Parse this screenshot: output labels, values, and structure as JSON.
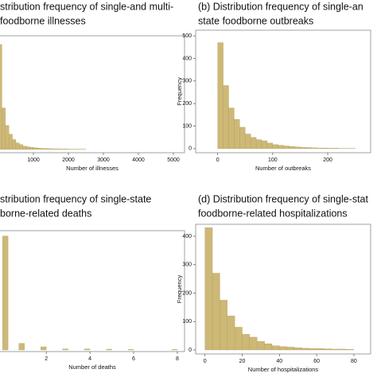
{
  "chart_data": [
    {
      "type": "histogram",
      "title": [
        "stribution frequency of single-and multi-",
        "foodborne illnesses"
      ],
      "x_label": "Number of illnesses",
      "color": "#cdb876",
      "bins": [
        0,
        100,
        200,
        300,
        400,
        500,
        600,
        700,
        800,
        900,
        1000,
        1100,
        1200,
        1300,
        1400,
        1500,
        1600,
        1700,
        1800,
        1900,
        2000,
        2100,
        2200,
        2300,
        2400,
        2500
      ],
      "counts": [
        480,
        190,
        110,
        70,
        45,
        30,
        22,
        15,
        12,
        10,
        8,
        6,
        5,
        4,
        4,
        3,
        3,
        2,
        2,
        2,
        1,
        1,
        1,
        1,
        1
      ],
      "xlim": [
        -68,
        5318
      ],
      "ylim": [
        -15,
        520
      ],
      "xticks": [
        1000,
        2000,
        3000,
        4000,
        5000
      ]
    },
    {
      "type": "histogram",
      "title": [
        "(b) Distribution frequency of single-an",
        "state foodborne outbreaks"
      ],
      "x_label": "Number of outbreaks",
      "y_label": "Frequency",
      "color": "#cdb876",
      "bins": [
        0,
        10,
        20,
        30,
        40,
        50,
        60,
        70,
        80,
        90,
        100,
        110,
        120,
        130,
        140,
        150,
        160,
        170,
        180,
        190,
        200,
        210,
        220,
        230,
        240,
        250
      ],
      "counts": [
        470,
        280,
        180,
        130,
        95,
        65,
        50,
        40,
        35,
        25,
        18,
        15,
        12,
        10,
        8,
        6,
        5,
        4,
        3,
        3,
        2,
        2,
        1,
        1,
        1
      ],
      "xlim": [
        -40,
        278
      ],
      "ylim": [
        -18,
        525
      ],
      "xticks": [
        0,
        100,
        200
      ],
      "yticks": [
        0,
        100,
        200,
        300,
        400,
        500
      ]
    },
    {
      "type": "histogram",
      "title": [
        "stribution frequency of single-state",
        "borne-related deaths"
      ],
      "x_label": "Number of deaths",
      "color": "#cdb876",
      "bins": [
        0,
        0.25,
        0.5,
        0.75,
        1,
        1.25,
        1.5,
        1.75,
        2,
        2.25,
        2.5,
        2.75,
        3,
        3.25,
        3.5,
        3.75,
        4,
        4.25,
        4.5,
        4.75,
        5,
        5.25,
        5.5,
        5.75,
        6,
        6.25,
        6.5,
        6.75,
        7,
        7.25,
        7.5,
        7.75,
        8
      ],
      "counts": [
        430,
        0,
        0,
        25,
        0,
        0,
        0,
        12,
        0,
        0,
        0,
        4,
        0,
        0,
        0,
        4,
        0,
        0,
        0,
        3,
        0,
        0,
        0,
        2,
        0,
        0,
        0,
        0,
        0,
        0,
        0,
        2
      ],
      "xlim": [
        -0.3,
        8.33
      ],
      "ylim": [
        -6,
        450
      ],
      "xticks": [
        2,
        4,
        6,
        8
      ]
    },
    {
      "type": "histogram",
      "title": [
        "(d) Distribution frequency of single-stat",
        "foodborne-related hospitalizations"
      ],
      "x_label": "Number of hospitalizations",
      "y_label": "Frequency",
      "color": "#cdb876",
      "bins": [
        0,
        4,
        8,
        12,
        16,
        20,
        24,
        28,
        32,
        36,
        40,
        44,
        48,
        52,
        56,
        60,
        64,
        68,
        72,
        76,
        80
      ],
      "counts": [
        430,
        270,
        175,
        120,
        80,
        55,
        45,
        30,
        22,
        15,
        12,
        10,
        8,
        6,
        5,
        5,
        4,
        3,
        3,
        2
      ],
      "xlim": [
        -5,
        89
      ],
      "ylim": [
        -14,
        442
      ],
      "xticks": [
        0,
        20,
        40,
        60,
        80
      ],
      "yticks": [
        0,
        100,
        200,
        300,
        400
      ]
    }
  ]
}
